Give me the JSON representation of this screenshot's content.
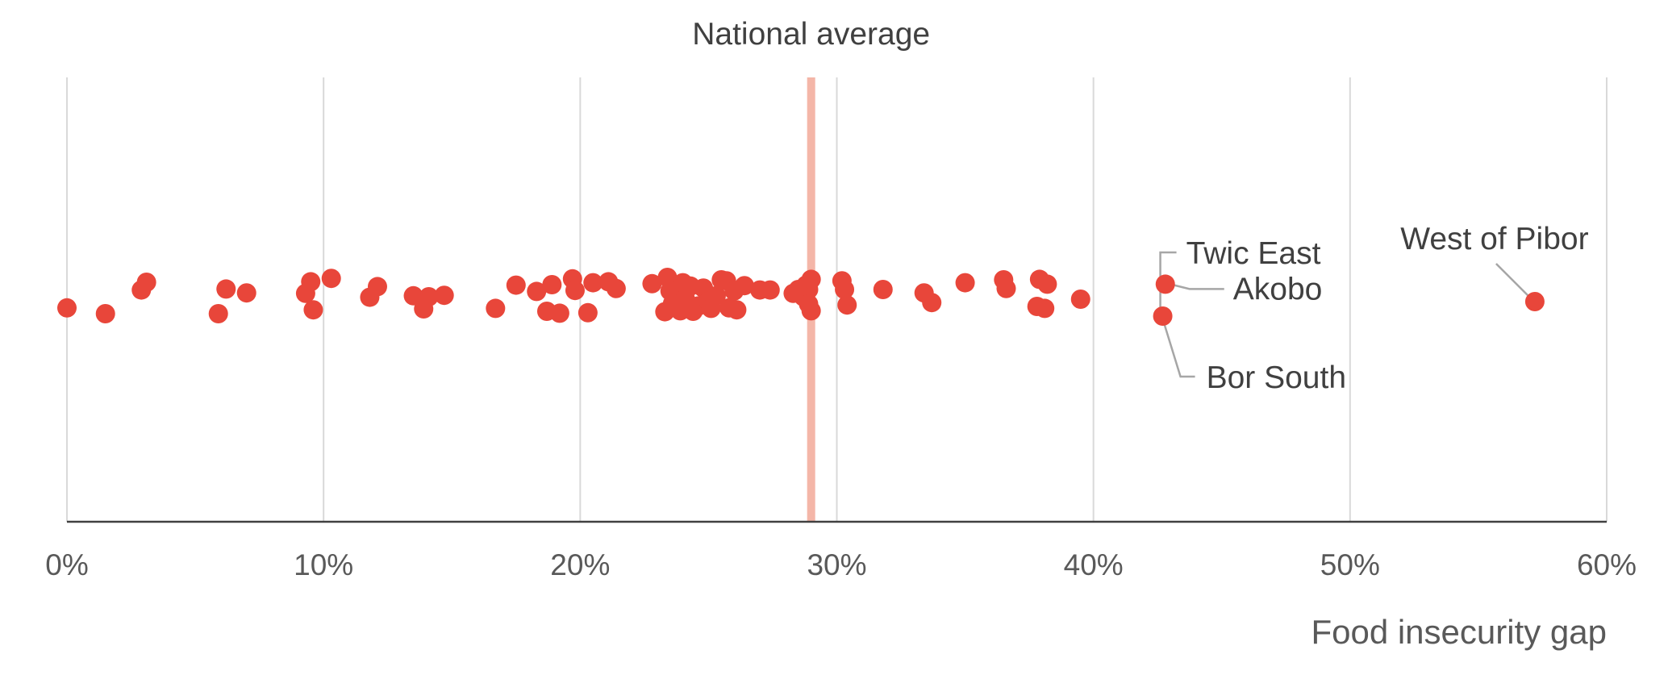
{
  "chart_data": {
    "type": "scatter",
    "title": "",
    "xlabel": "Food insecurity gap",
    "ylabel": "",
    "xlim": [
      0,
      60
    ],
    "x_ticks": [
      "0%",
      "10%",
      "20%",
      "30%",
      "40%",
      "50%",
      "60%"
    ],
    "grid": "vertical",
    "reference_line": {
      "label": "National average",
      "x": 29.0,
      "color": "#f4b6a8"
    },
    "point_color": "#e8463a",
    "points": [
      {
        "x": 0.0,
        "y": -0.23
      },
      {
        "x": 1.5,
        "y": -0.35
      },
      {
        "x": 2.9,
        "y": 0.14
      },
      {
        "x": 3.1,
        "y": 0.3
      },
      {
        "x": 5.9,
        "y": -0.35
      },
      {
        "x": 6.2,
        "y": 0.16
      },
      {
        "x": 7.0,
        "y": 0.08
      },
      {
        "x": 9.3,
        "y": 0.07
      },
      {
        "x": 9.5,
        "y": 0.31
      },
      {
        "x": 9.6,
        "y": -0.27
      },
      {
        "x": 10.3,
        "y": 0.38
      },
      {
        "x": 11.8,
        "y": -0.01
      },
      {
        "x": 12.1,
        "y": 0.21
      },
      {
        "x": 13.5,
        "y": 0.02
      },
      {
        "x": 13.9,
        "y": -0.25
      },
      {
        "x": 14.1,
        "y": 0.0
      },
      {
        "x": 14.7,
        "y": 0.03
      },
      {
        "x": 16.7,
        "y": -0.24
      },
      {
        "x": 17.5,
        "y": 0.24
      },
      {
        "x": 18.3,
        "y": 0.11
      },
      {
        "x": 18.7,
        "y": -0.3
      },
      {
        "x": 18.9,
        "y": 0.25
      },
      {
        "x": 19.2,
        "y": -0.34
      },
      {
        "x": 19.7,
        "y": 0.37
      },
      {
        "x": 19.8,
        "y": 0.13
      },
      {
        "x": 20.3,
        "y": -0.33
      },
      {
        "x": 20.5,
        "y": 0.29
      },
      {
        "x": 21.1,
        "y": 0.31
      },
      {
        "x": 21.4,
        "y": 0.17
      },
      {
        "x": 22.8,
        "y": 0.27
      },
      {
        "x": 23.3,
        "y": -0.31
      },
      {
        "x": 23.4,
        "y": 0.4
      },
      {
        "x": 23.5,
        "y": 0.12
      },
      {
        "x": 23.6,
        "y": -0.14
      },
      {
        "x": 23.9,
        "y": -0.29
      },
      {
        "x": 24.0,
        "y": 0.29
      },
      {
        "x": 24.1,
        "y": -0.05
      },
      {
        "x": 24.3,
        "y": 0.22
      },
      {
        "x": 24.4,
        "y": -0.3
      },
      {
        "x": 24.6,
        "y": -0.19
      },
      {
        "x": 24.8,
        "y": 0.18
      },
      {
        "x": 25.0,
        "y": -0.09
      },
      {
        "x": 25.1,
        "y": -0.24
      },
      {
        "x": 25.3,
        "y": 0.02
      },
      {
        "x": 25.5,
        "y": 0.35
      },
      {
        "x": 25.7,
        "y": 0.33
      },
      {
        "x": 25.8,
        "y": -0.23
      },
      {
        "x": 26.0,
        "y": 0.12
      },
      {
        "x": 26.1,
        "y": -0.27
      },
      {
        "x": 26.4,
        "y": 0.23
      },
      {
        "x": 27.0,
        "y": 0.14
      },
      {
        "x": 27.4,
        "y": 0.14
      },
      {
        "x": 28.3,
        "y": 0.07
      },
      {
        "x": 28.5,
        "y": 0.15
      },
      {
        "x": 28.7,
        "y": 0.0
      },
      {
        "x": 28.8,
        "y": 0.24
      },
      {
        "x": 28.9,
        "y": 0.15
      },
      {
        "x": 28.9,
        "y": -0.15
      },
      {
        "x": 29.0,
        "y": -0.29
      },
      {
        "x": 29.0,
        "y": 0.36
      },
      {
        "x": 30.2,
        "y": 0.33
      },
      {
        "x": 30.3,
        "y": 0.15
      },
      {
        "x": 30.4,
        "y": -0.17
      },
      {
        "x": 31.8,
        "y": 0.15
      },
      {
        "x": 33.4,
        "y": 0.08
      },
      {
        "x": 33.7,
        "y": -0.12
      },
      {
        "x": 35.0,
        "y": 0.29
      },
      {
        "x": 36.5,
        "y": 0.35
      },
      {
        "x": 36.6,
        "y": 0.17
      },
      {
        "x": 37.8,
        "y": -0.2
      },
      {
        "x": 37.9,
        "y": 0.36
      },
      {
        "x": 38.1,
        "y": -0.24
      },
      {
        "x": 38.2,
        "y": 0.26
      },
      {
        "x": 39.5,
        "y": -0.05
      },
      {
        "x": 42.8,
        "y": 0.26,
        "label": "Akobo"
      },
      {
        "x": 42.7,
        "y": -0.4,
        "label": "Bor South"
      },
      {
        "x": 57.2,
        "y": -0.1,
        "label": "West of Pibor"
      }
    ],
    "annotations": [
      {
        "label": "Twic East"
      },
      {
        "label": "Akobo"
      },
      {
        "label": "Bor South"
      },
      {
        "label": "West of Pibor"
      }
    ]
  }
}
